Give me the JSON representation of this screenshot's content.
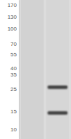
{
  "chart_data": {
    "type": "blot",
    "categories": [
      null,
      null
    ],
    "series": [
      {
        "values": [
          null,
          26
        ],
        "color": "#2b2b2b"
      },
      {
        "values": [
          null,
          14.5
        ],
        "color": "#2b2b2b"
      }
    ],
    "log": "y",
    "ylim": [
      8,
      190
    ],
    "yticks": [
      170,
      130,
      100,
      70,
      55,
      40,
      35,
      25,
      15,
      10
    ],
    "tick_labels": "y"
  }
}
